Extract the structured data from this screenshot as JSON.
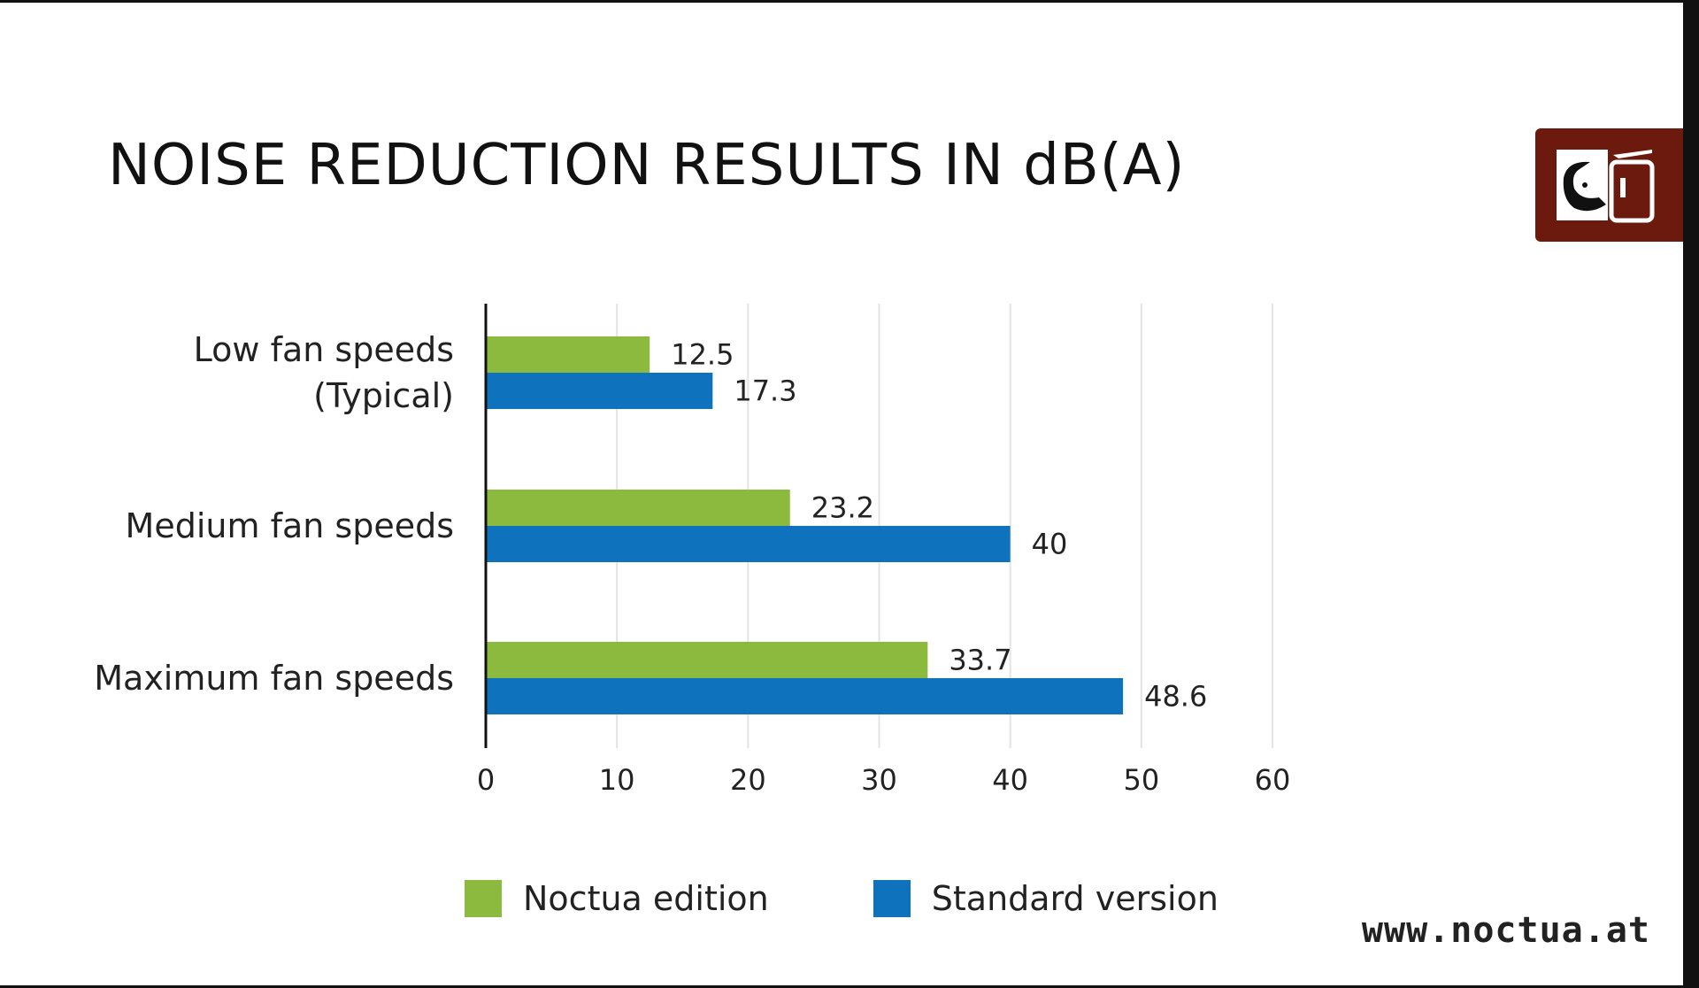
{
  "page": {
    "title": "NOISE REDUCTION RESULTS IN dB(A)",
    "website": "www.noctua.at",
    "logo_icon": "noctua-owl-logo-icon"
  },
  "colors": {
    "noctua": "#8cba3e",
    "standard": "#0f72bd",
    "logo_bg": "#6b1a0d",
    "grid": "#e4e4e4",
    "axis": "#111111"
  },
  "legend": {
    "items": [
      {
        "label": "Noctua edition",
        "color": "#8cba3e"
      },
      {
        "label": "Standard version",
        "color": "#0f72bd"
      }
    ]
  },
  "chart_data": {
    "type": "bar",
    "orientation": "horizontal",
    "title": "NOISE REDUCTION RESULTS IN dB(A)",
    "categories": [
      [
        "Low fan speeds",
        "(Typical)"
      ],
      [
        "Medium fan speeds"
      ],
      [
        "Maximum fan speeds"
      ]
    ],
    "series": [
      {
        "name": "Noctua edition",
        "values": [
          12.5,
          23.2,
          33.7
        ],
        "labels": [
          "12.5",
          "23.2",
          "33.7"
        ],
        "color": "#8cba3e"
      },
      {
        "name": "Standard version",
        "values": [
          17.3,
          40,
          48.6
        ],
        "labels": [
          "17.3",
          "40",
          "48.6"
        ],
        "color": "#0f72bd"
      }
    ],
    "xlim": [
      0,
      60
    ],
    "xticks": [
      0,
      10,
      20,
      30,
      40,
      50,
      60
    ],
    "grid": true,
    "legend_position": "bottom"
  }
}
